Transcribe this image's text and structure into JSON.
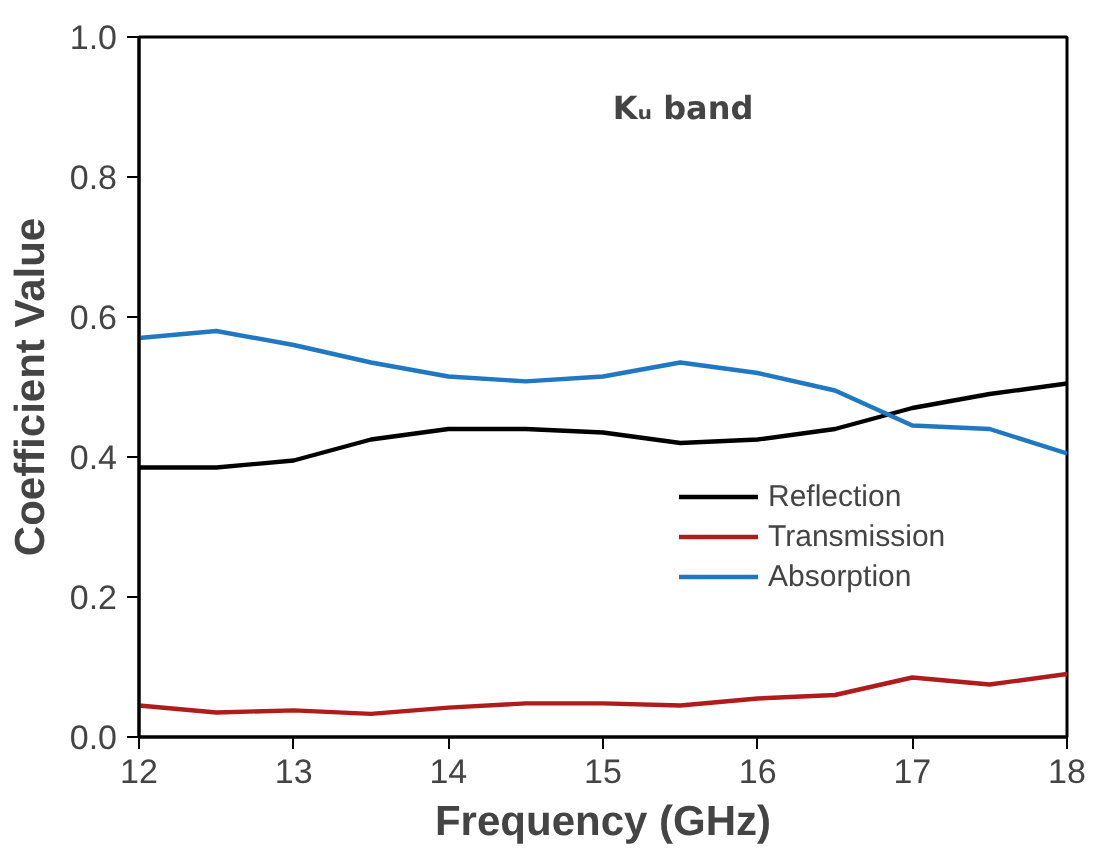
{
  "chart_data": {
    "type": "line",
    "title": "Kᵤ band",
    "xlabel": "Frequency (GHz)",
    "ylabel": "Coefficient Value",
    "x": [
      12,
      12.5,
      13,
      13.5,
      14,
      14.5,
      15,
      15.5,
      16,
      16.5,
      17,
      17.5,
      18
    ],
    "series": [
      {
        "name": "Reflection",
        "color": "#000000",
        "values": [
          0.385,
          0.385,
          0.395,
          0.425,
          0.44,
          0.44,
          0.435,
          0.42,
          0.425,
          0.44,
          0.47,
          0.49,
          0.505
        ]
      },
      {
        "name": "Transmission",
        "color": "#b01c1c",
        "values": [
          0.045,
          0.035,
          0.038,
          0.033,
          0.042,
          0.048,
          0.048,
          0.045,
          0.055,
          0.06,
          0.085,
          0.075,
          0.09
        ]
      },
      {
        "name": "Absorption",
        "color": "#1f78c1",
        "values": [
          0.57,
          0.58,
          0.56,
          0.535,
          0.515,
          0.508,
          0.515,
          0.535,
          0.52,
          0.495,
          0.445,
          0.44,
          0.405
        ]
      }
    ],
    "xlim": [
      12,
      18
    ],
    "xticks": [
      12,
      13,
      14,
      15,
      16,
      17,
      18
    ],
    "ylim": [
      0,
      1
    ],
    "yticks": [
      {
        "value": 0,
        "label": "0.0"
      },
      0.2,
      0.4,
      0.6,
      0.8,
      {
        "value": 1,
        "label": "1.0"
      }
    ],
    "grid": false,
    "legend": "right",
    "line_style": "solid"
  }
}
